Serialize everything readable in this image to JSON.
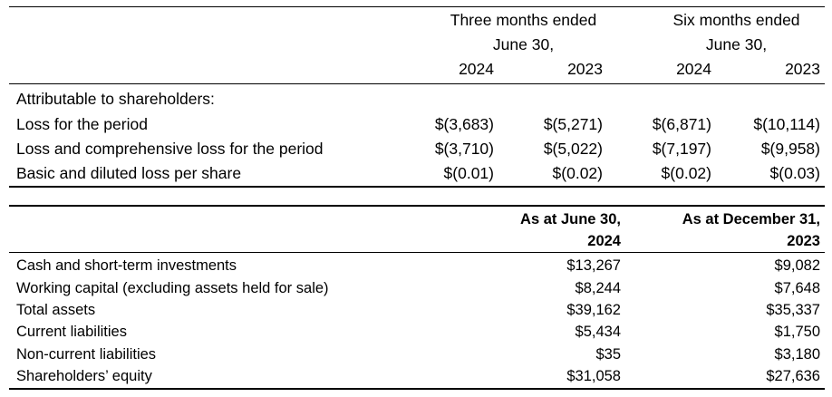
{
  "income_table": {
    "header": {
      "group_three": [
        "Three months ended",
        "June 30,"
      ],
      "group_six": [
        "Six months ended",
        "June 30,"
      ],
      "years": [
        "2024",
        "2023",
        "2024",
        "2023"
      ]
    },
    "section_label": "Attributable to shareholders:",
    "rows": [
      {
        "label": "Loss for the period",
        "values": [
          "$(3,683)",
          "$(5,271)",
          "$(6,871)",
          "$(10,114)"
        ]
      },
      {
        "label": "Loss and comprehensive loss for the period",
        "values": [
          "$(3,710)",
          "$(5,022)",
          "$(7,197)",
          "$(9,958)"
        ]
      },
      {
        "label": "Basic and diluted loss per share",
        "values": [
          "$(0.01)",
          "$(0.02)",
          "$(0.02)",
          "$(0.03)"
        ]
      }
    ]
  },
  "balance_table": {
    "header": {
      "col1": [
        "As at June 30,",
        "2024"
      ],
      "col2": [
        "As at December 31,",
        "2023"
      ]
    },
    "rows": [
      {
        "label": "Cash and short-term investments",
        "values": [
          "$13,267",
          "$9,082"
        ]
      },
      {
        "label": "Working capital (excluding assets held for sale)",
        "values": [
          "$8,244",
          "$7,648"
        ]
      },
      {
        "label": "Total assets",
        "values": [
          "$39,162",
          "$35,337"
        ]
      },
      {
        "label": "Current liabilities",
        "values": [
          "$5,434",
          "$1,750"
        ]
      },
      {
        "label": "Non-current liabilities",
        "values": [
          "$35",
          "$3,180"
        ]
      },
      {
        "label": "Shareholders’ equity",
        "values": [
          "$31,058",
          "$27,636"
        ]
      }
    ]
  }
}
